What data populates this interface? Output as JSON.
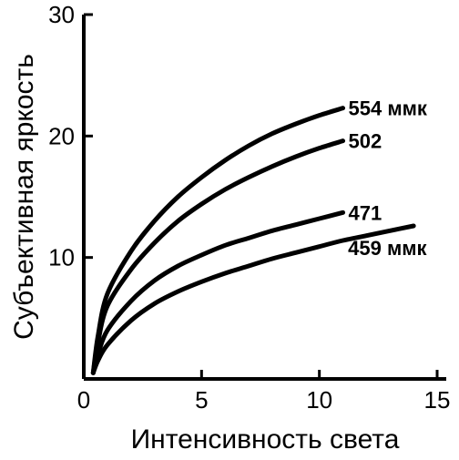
{
  "chart_data": {
    "type": "line",
    "xlabel": "Интенсивность света",
    "ylabel": "Субъективная яркость",
    "xlim": [
      0,
      15
    ],
    "ylim": [
      0,
      30
    ],
    "xticks": [
      0,
      5,
      10,
      15
    ],
    "yticks": [
      10,
      20,
      30
    ],
    "xtick_labels": [
      "0",
      "5",
      "10",
      "15"
    ],
    "ytick_labels": [
      "10",
      "20",
      "30"
    ],
    "grid": false,
    "series": [
      {
        "name": "554 ммк",
        "x": [
          0.4,
          0.6,
          1,
          2,
          3,
          4,
          5,
          6,
          7,
          8,
          9,
          10,
          11
        ],
        "y": [
          0.5,
          3.5,
          7,
          10.5,
          13,
          15,
          16.6,
          18,
          19.2,
          20.2,
          21,
          21.7,
          22.3
        ]
      },
      {
        "name": "502",
        "x": [
          0.4,
          0.6,
          1,
          2,
          3,
          4,
          5,
          6,
          7,
          8,
          9,
          10,
          11
        ],
        "y": [
          0.5,
          3,
          6,
          9,
          11.2,
          13,
          14.4,
          15.6,
          16.6,
          17.5,
          18.3,
          19,
          19.6
        ]
      },
      {
        "name": "471",
        "x": [
          0.4,
          0.6,
          1,
          2,
          3,
          4,
          5,
          6,
          7,
          8,
          9,
          10,
          11
        ],
        "y": [
          0.5,
          2,
          4,
          6.4,
          8.1,
          9.3,
          10.2,
          11,
          11.6,
          12.2,
          12.7,
          13.2,
          13.7
        ]
      },
      {
        "name": "459 ммк",
        "x": [
          0.4,
          0.6,
          1,
          2,
          3,
          4,
          5,
          6,
          7,
          8,
          9,
          10,
          11,
          12,
          13,
          14
        ],
        "y": [
          0.5,
          1.5,
          2.8,
          4.8,
          6.2,
          7.2,
          8,
          8.7,
          9.3,
          9.9,
          10.4,
          10.9,
          11.4,
          11.8,
          12.2,
          12.6
        ]
      }
    ]
  }
}
